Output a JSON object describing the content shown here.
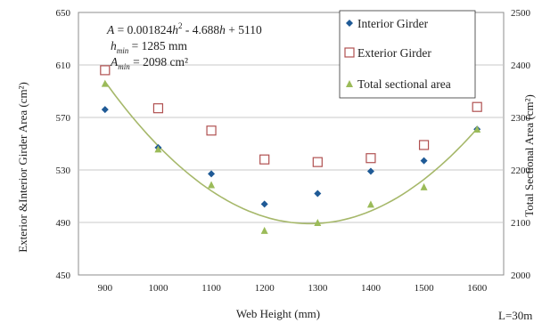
{
  "chart_data": {
    "type": "scatter",
    "title": "",
    "x": [
      900,
      1000,
      1100,
      1200,
      1300,
      1400,
      1500,
      1600
    ],
    "xlabel": "Web Height (mm)",
    "xlim": [
      850,
      1650
    ],
    "xticks": [
      "900",
      "1000",
      "1100",
      "1200",
      "1300",
      "1400",
      "1500",
      "1600"
    ],
    "ylabel_left": "Exterior &Interior Girder Area (cm²)",
    "ylim_left": [
      450,
      650
    ],
    "yticks_left": [
      "450",
      "490",
      "530",
      "570",
      "610",
      "650"
    ],
    "ylabel_right": "Total Sectional Area (cm²)",
    "ylim_right": [
      2000,
      2500
    ],
    "yticks_right": [
      "2000",
      "2100",
      "2200",
      "2300",
      "2400",
      "2500"
    ],
    "grid": "horizontal",
    "series": [
      {
        "name": "Interior Girder",
        "axis": "left",
        "marker": "diamond",
        "color": "#1f5a96",
        "values": [
          576,
          547,
          527,
          504,
          512,
          529,
          537,
          561
        ]
      },
      {
        "name": "Exterior Girder",
        "axis": "left",
        "marker": "square-open",
        "color": "#b05050",
        "values": [
          606,
          577,
          560,
          538,
          536,
          539,
          549,
          578
        ]
      },
      {
        "name": "Total sectional area",
        "axis": "right",
        "marker": "triangle",
        "color": "#9bbb59",
        "values": [
          2365,
          2240,
          2172,
          2085,
          2100,
          2135,
          2168,
          2278
        ]
      }
    ],
    "trendline": {
      "axis": "right",
      "color": "#a6b86a",
      "coefficients": [
        0.001824,
        -4.688,
        5110
      ],
      "x_range": [
        900,
        1600
      ]
    },
    "annotation": {
      "line1_pre": "A",
      "line1_mid": " = 0.001824",
      "line1_h": "h",
      "line1_sup": "2",
      "line1_rest": " - 4.688",
      "line1_h2": "h",
      "line1_end": " + 5110",
      "line2_var": "h",
      "line2_sub": "min",
      "line2_rest": " = 1285 mm",
      "line3_var": "A",
      "line3_sub": "min",
      "line3_rest": " = 2098 cm²"
    },
    "legend_position": "top-right",
    "note": "L=30m"
  }
}
